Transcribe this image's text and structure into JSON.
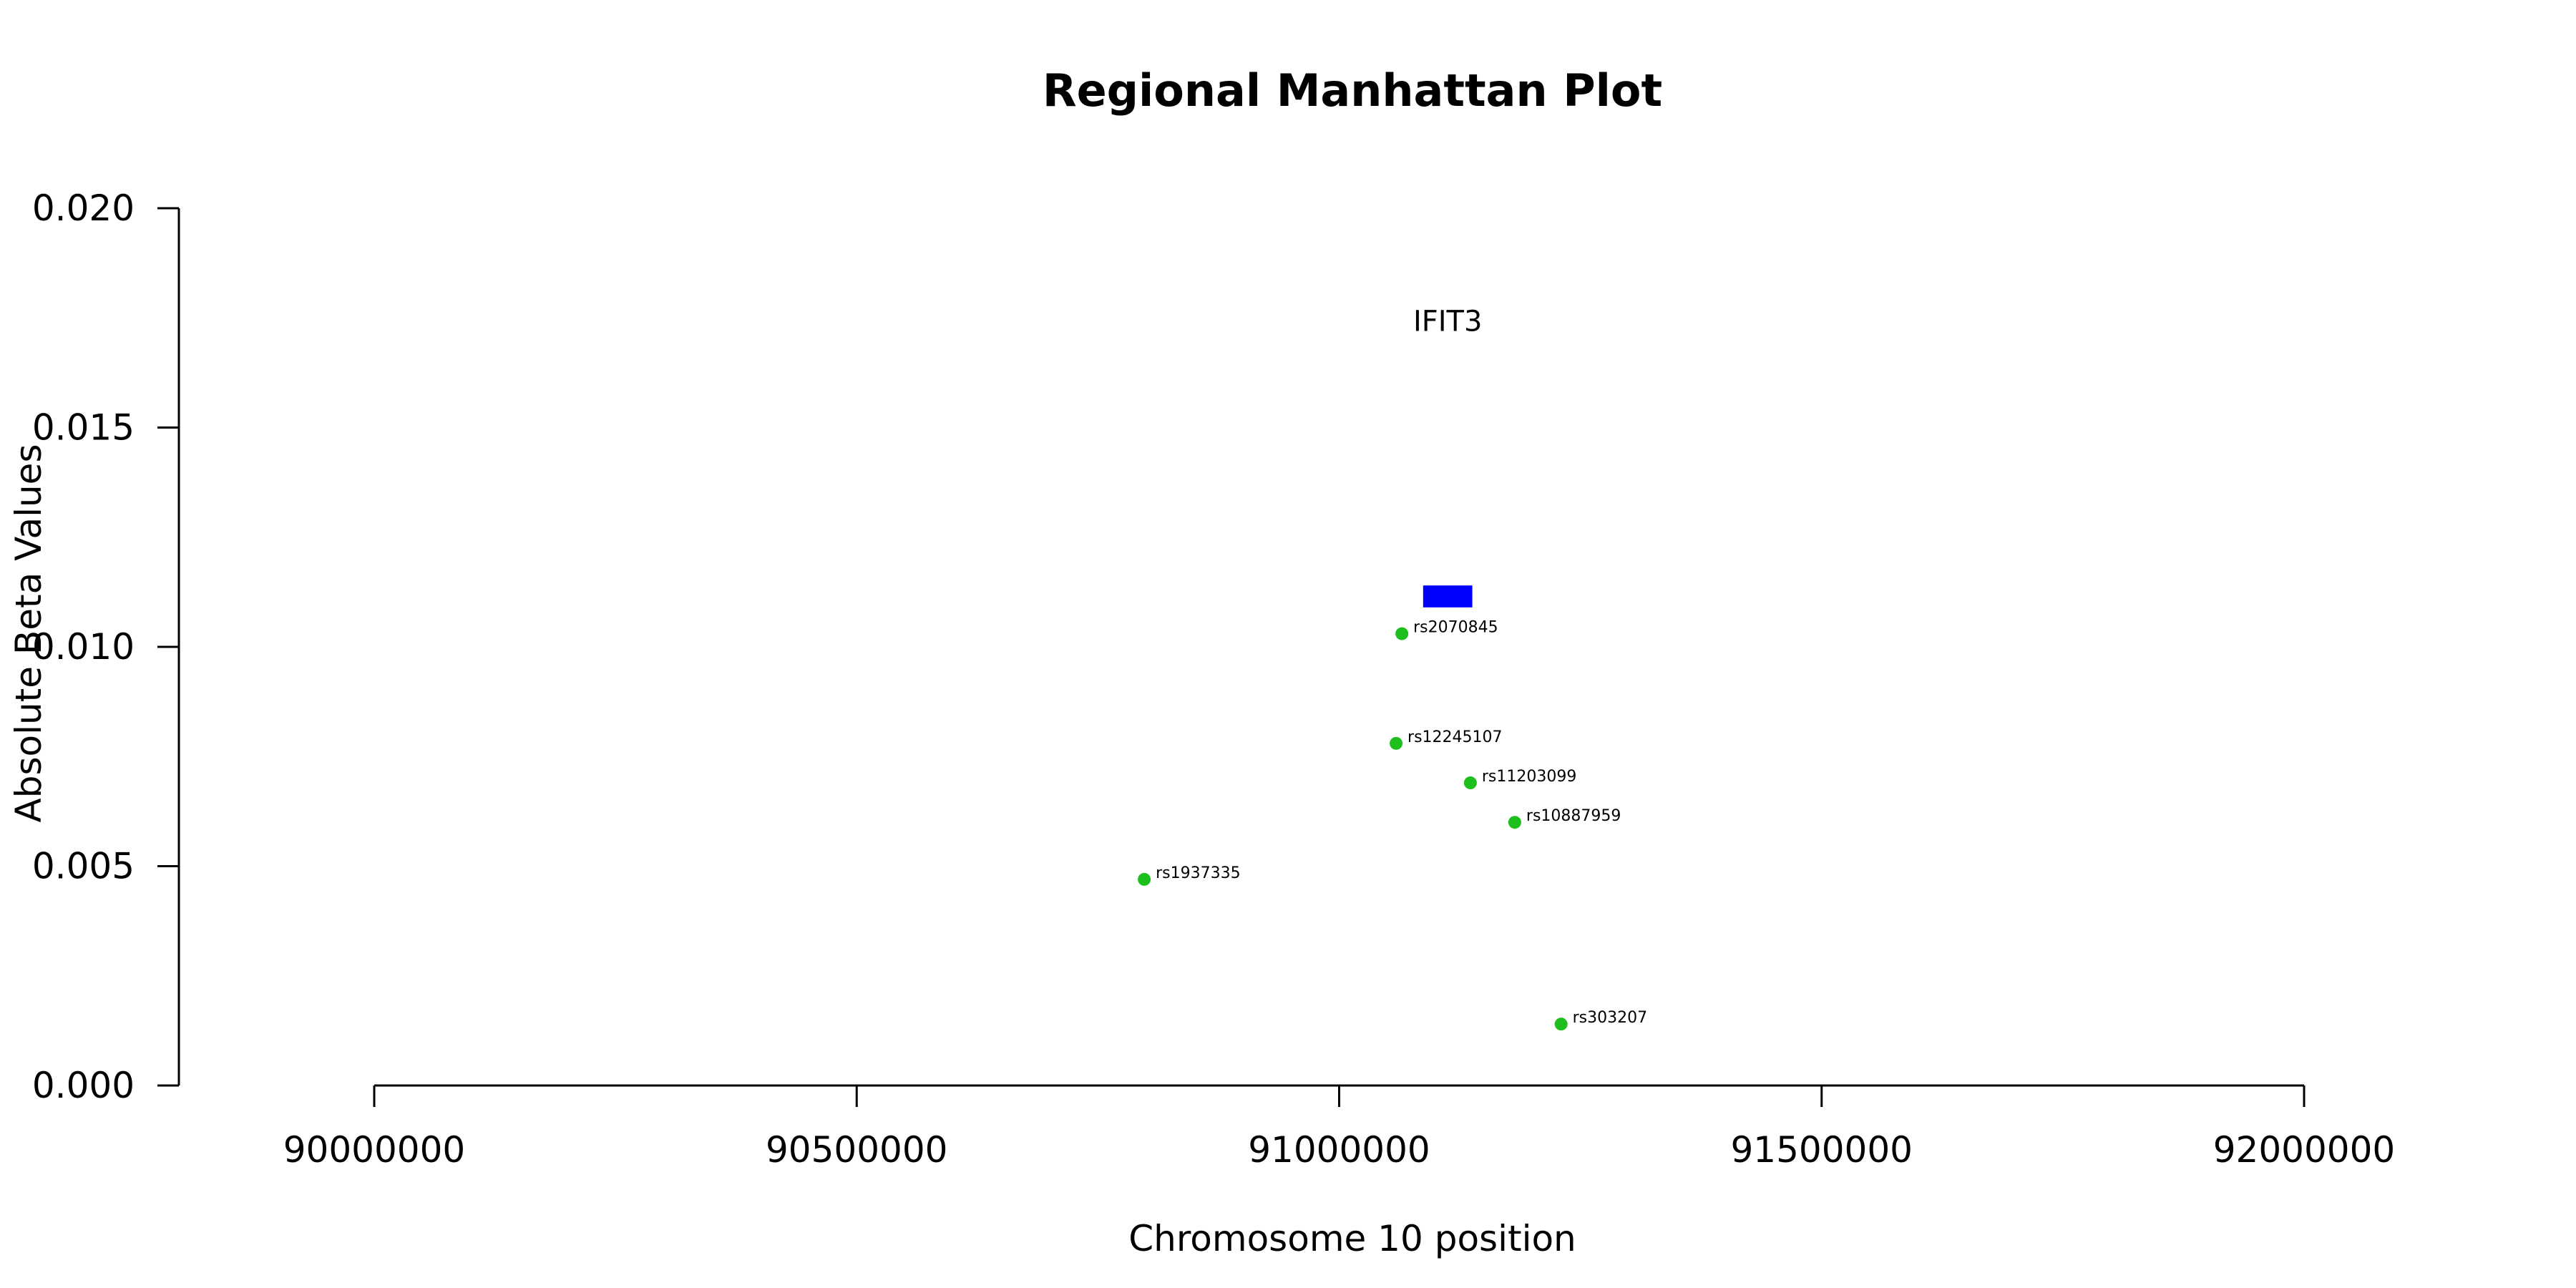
{
  "chart_data": {
    "type": "scatter",
    "title": "Regional Manhattan Plot",
    "xlabel": "Chromosome 10 position",
    "ylabel": "Absolute Beta Values",
    "xlim": [
      90000000,
      92000000
    ],
    "ylim": [
      0,
      0.02
    ],
    "x_ticks": [
      90000000,
      90500000,
      91000000,
      91500000,
      92000000
    ],
    "x_tick_labels": [
      "90000000",
      "90500000",
      "91000000",
      "91500000",
      "92000000"
    ],
    "y_ticks": [
      0,
      0.005,
      0.01,
      0.015,
      0.02
    ],
    "y_tick_labels": [
      "0.000",
      "0.005",
      "0.010",
      "0.015",
      "0.020"
    ],
    "grid": false,
    "point_color": "#1dbf1d",
    "points": [
      {
        "label": "rs2070845",
        "x": 91065000,
        "y": 0.0103
      },
      {
        "label": "rs12245107",
        "x": 91059000,
        "y": 0.0078
      },
      {
        "label": "rs11203099",
        "x": 91136000,
        "y": 0.0069
      },
      {
        "label": "rs10887959",
        "x": 91182000,
        "y": 0.006
      },
      {
        "label": "rs1937335",
        "x": 90798000,
        "y": 0.0047
      },
      {
        "label": "rs303207",
        "x": 91230000,
        "y": 0.0014
      }
    ],
    "gene": {
      "name": "IFIT3",
      "start": 91087000,
      "end": 91138000,
      "y_bottom": 0.0109,
      "y_top": 0.0114,
      "label_y": 0.0172,
      "color": "#0000ff"
    }
  }
}
